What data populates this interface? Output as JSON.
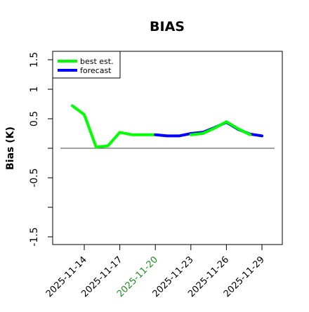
{
  "chart_data": {
    "type": "line",
    "title": "BIAS",
    "xlabel": "",
    "ylabel": "Bias (K)",
    "ylim": [
      -1.6,
      1.6
    ],
    "yticks": [
      -1.5,
      -0.5,
      0.5,
      1.0,
      1.5
    ],
    "yticks_unlabeled": [
      -1.0,
      0.0
    ],
    "xlim": [
      -2,
      16
    ],
    "x_tick_positions": [
      0,
      3,
      6,
      9,
      12,
      15
    ],
    "x_tick_labels": [
      "2025-11-14",
      "2025-11-17",
      "2025-11-20",
      "2025-11-23",
      "2025-11-26",
      "2025-11-29"
    ],
    "highlight_tick": "2025-11-20",
    "highlight_color": "#228B22",
    "zero_line": 0,
    "grid": false,
    "legend_position": "top-left",
    "series": [
      {
        "name": "best est.",
        "color": "#00ff00",
        "x": [
          -1,
          0,
          1,
          2,
          3,
          4,
          5,
          6
        ],
        "values": [
          0.72,
          0.57,
          0.02,
          0.04,
          0.27,
          0.23,
          0.23,
          0.23
        ]
      },
      {
        "name": "forecast",
        "color": "#0000ff",
        "x": [
          6,
          7,
          8,
          9,
          10,
          11,
          12,
          13,
          14,
          15
        ],
        "values": [
          0.23,
          0.21,
          0.21,
          0.25,
          0.27,
          0.35,
          0.44,
          0.32,
          0.24,
          0.21
        ]
      },
      {
        "name": "best est.",
        "color": "#00ff00",
        "x": [
          9,
          10,
          11,
          12,
          13,
          14
        ],
        "values": [
          0.23,
          0.25,
          0.34,
          0.45,
          0.33,
          0.23
        ]
      }
    ]
  }
}
